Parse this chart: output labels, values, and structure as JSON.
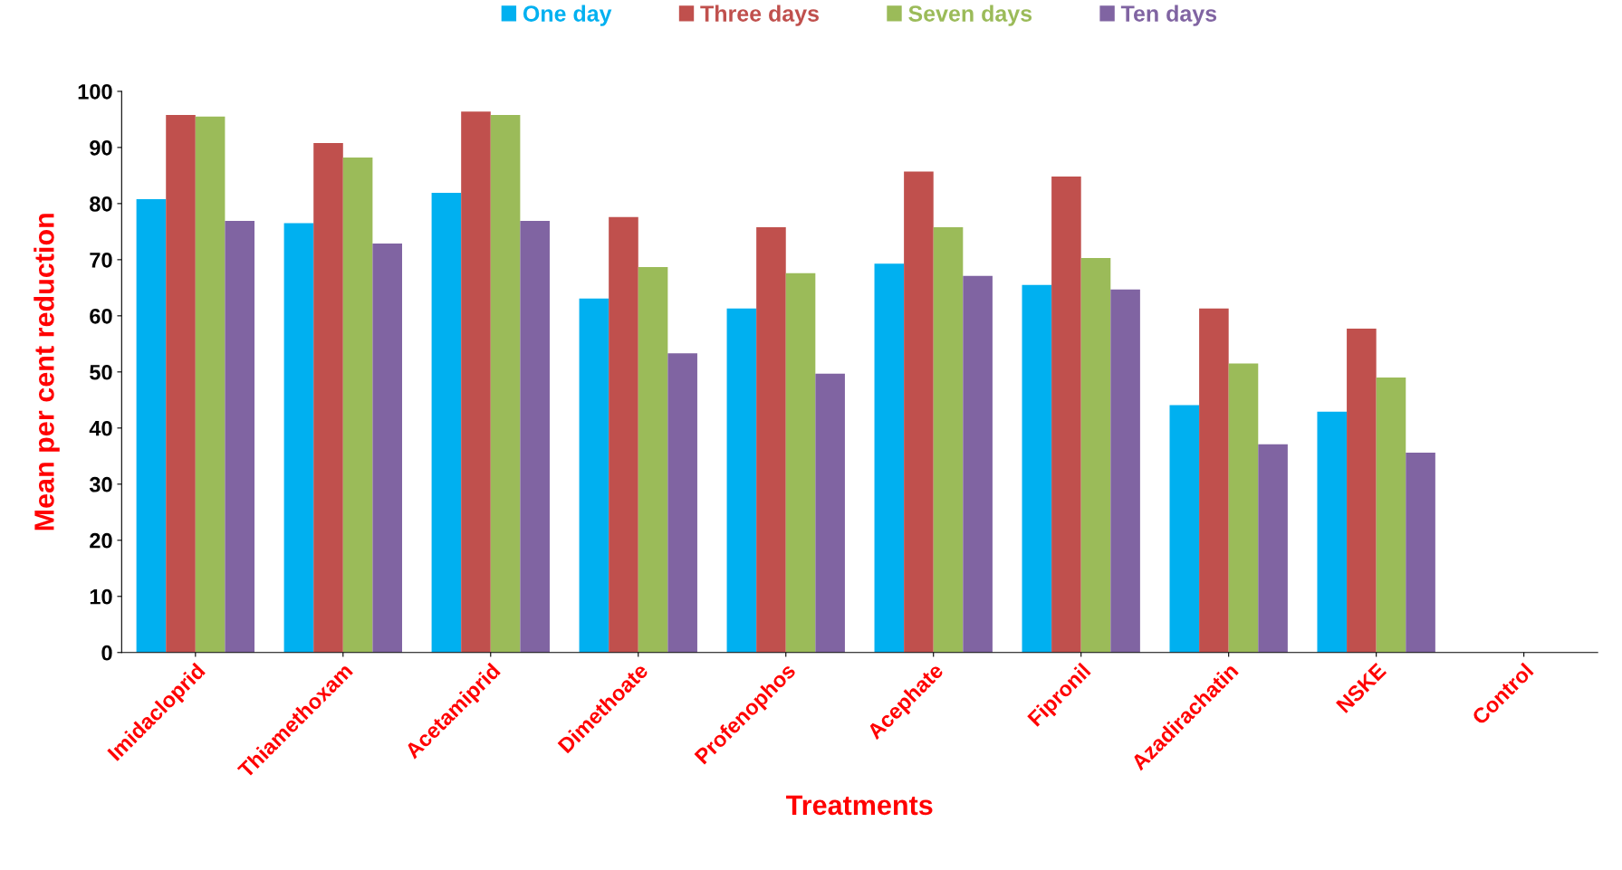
{
  "chart_data": {
    "type": "bar",
    "xlabel": "Treatments",
    "ylabel": "Mean per cent reduction",
    "categories": [
      "Imidacloprid",
      "Thiamethoxam",
      "Acetamiprid",
      "Dimethoate",
      "Profenophos",
      "Acephate",
      "Fipronil",
      "Azadirachatin",
      "NSKE",
      "Control"
    ],
    "series": [
      {
        "name": "One day",
        "color": "#00b0f0",
        "values": [
          80.8,
          76.5,
          81.9,
          63.1,
          61.3,
          69.3,
          65.5,
          44.1,
          42.9,
          0
        ]
      },
      {
        "name": "Three days",
        "color": "#c0504d",
        "values": [
          95.8,
          90.8,
          96.4,
          77.6,
          75.8,
          85.7,
          84.8,
          61.3,
          57.7,
          0
        ]
      },
      {
        "name": "Seven days",
        "color": "#9bbb59",
        "values": [
          95.5,
          88.2,
          95.8,
          68.7,
          67.6,
          75.8,
          70.3,
          51.5,
          49.0,
          0
        ]
      },
      {
        "name": "Ten days",
        "color": "#8064a2",
        "values": [
          76.9,
          72.9,
          76.9,
          53.3,
          49.7,
          67.1,
          64.7,
          37.1,
          35.6,
          0
        ]
      }
    ],
    "ylim": [
      0,
      100
    ],
    "yticks": [
      0,
      10,
      20,
      30,
      40,
      50,
      60,
      70,
      80,
      90,
      100
    ],
    "grid": false,
    "legend": "top"
  }
}
